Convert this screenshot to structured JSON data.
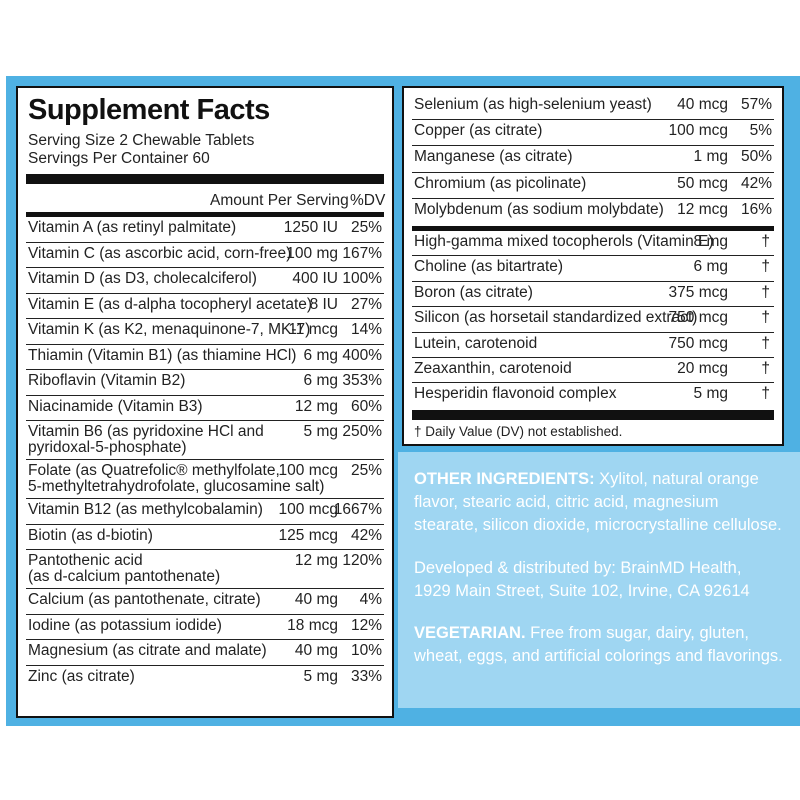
{
  "panel": {
    "title": "Supplement Facts",
    "serving_size": "Serving Size 2 Chewable Tablets",
    "servings_per_container": "Servings Per Container 60",
    "amount_header": "Amount Per Serving",
    "dv_header": "%DV"
  },
  "left_rows": [
    {
      "name": "Vitamin A (as retinyl palmitate)",
      "amount": "1250 IU",
      "dv": "25%"
    },
    {
      "name": "Vitamin C (as ascorbic acid, corn-free)",
      "amount": "100 mg",
      "dv": "167%"
    },
    {
      "name": "Vitamin D (as D3, cholecalciferol)",
      "amount": "400 IU",
      "dv": "100%"
    },
    {
      "name": "Vitamin E (as d-alpha tocopheryl acetate)",
      "amount": "8 IU",
      "dv": "27%"
    },
    {
      "name": "Vitamin K (as K2, menaquinone-7, MK-7)",
      "amount": "11 mcg",
      "dv": "14%"
    },
    {
      "name": "Thiamin (Vitamin B1) (as thiamine HCl)",
      "amount": "6 mg",
      "dv": "400%"
    },
    {
      "name": "Riboflavin (Vitamin B2)",
      "amount": "6 mg",
      "dv": "353%"
    },
    {
      "name": "Niacinamide (Vitamin B3)",
      "amount": "12 mg",
      "dv": "60%"
    },
    {
      "name": "Vitamin B6 (as pyridoxine HCl and",
      "name2": "pyridoxal-5-phosphate)",
      "amount": "5 mg",
      "dv": "250%"
    },
    {
      "name": "Folate (as Quatrefolic® methylfolate,",
      "name2": "5-methyltetrahydrofolate, glucosamine salt)",
      "amount": "100 mcg",
      "dv": "25%"
    },
    {
      "name": "Vitamin B12 (as methylcobalamin)",
      "amount": "100 mcg",
      "dv": "1667%"
    },
    {
      "name": "Biotin (as d-biotin)",
      "amount": "125 mcg",
      "dv": "42%"
    },
    {
      "name": "Pantothenic acid",
      "name2": "(as d-calcium pantothenate)",
      "amount": "12 mg",
      "dv": "120%"
    },
    {
      "name": "Calcium (as pantothenate, citrate)",
      "amount": "40 mg",
      "dv": "4%"
    },
    {
      "name": "Iodine (as potassium iodide)",
      "amount": "18 mcg",
      "dv": "12%"
    },
    {
      "name": "Magnesium (as citrate and malate)",
      "amount": "40 mg",
      "dv": "10%"
    },
    {
      "name": "Zinc (as citrate)",
      "amount": "5 mg",
      "dv": "33%"
    }
  ],
  "right_rows_a": [
    {
      "name": "Selenium (as high-selenium yeast)",
      "amount": "40 mcg",
      "dv": "57%"
    },
    {
      "name": "Copper (as citrate)",
      "amount": "100 mcg",
      "dv": "5%"
    },
    {
      "name": "Manganese (as citrate)",
      "amount": "1 mg",
      "dv": "50%"
    },
    {
      "name": "Chromium (as picolinate)",
      "amount": "50 mcg",
      "dv": "42%"
    },
    {
      "name": "Molybdenum (as sodium molybdate)",
      "amount": "12 mcg",
      "dv": "16%"
    }
  ],
  "right_rows_b": [
    {
      "name": "High-gamma mixed tocopherols (Vitamin E)",
      "amount": "8 mg",
      "dv": "†"
    },
    {
      "name": "Choline (as bitartrate)",
      "amount": "6 mg",
      "dv": "†"
    },
    {
      "name": "Boron (as citrate)",
      "amount": "375 mcg",
      "dv": "†"
    },
    {
      "name": "Silicon (as horsetail standardized extract)",
      "amount": "750 mcg",
      "dv": "†"
    },
    {
      "name": "Lutein, carotenoid",
      "amount": "750 mcg",
      "dv": "†"
    },
    {
      "name": "Zeaxanthin, carotenoid",
      "amount": "20 mcg",
      "dv": "†"
    },
    {
      "name": "Hesperidin flavonoid complex",
      "amount": "5 mg",
      "dv": "†"
    }
  ],
  "footnote": "† Daily Value (DV) not established.",
  "other": {
    "ingredients_label": "OTHER INGREDIENTS:",
    "ingredients_text": " Xylitol, natural orange flavor, stearic acid, citric acid, magnesium stearate, silicon dioxide, microcrystalline cellulose.",
    "distributor": "Developed & distributed by: BrainMD Health, 1929 Main Street, Suite 102, Irvine, CA 92614",
    "vegetarian_label": "VEGETARIAN.",
    "vegetarian_text": " Free from sugar, dairy, gluten, wheat, eggs, and artificial colorings and flavorings."
  },
  "colors": {
    "band": "#4fb1e3",
    "light": "#9fd6f2",
    "ink": "#111111"
  }
}
